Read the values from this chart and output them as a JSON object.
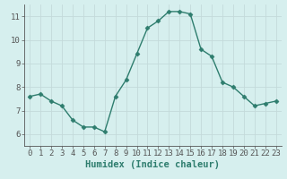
{
  "x": [
    0,
    1,
    2,
    3,
    4,
    5,
    6,
    7,
    8,
    9,
    10,
    11,
    12,
    13,
    14,
    15,
    16,
    17,
    18,
    19,
    20,
    21,
    22,
    23
  ],
  "y": [
    7.6,
    7.7,
    7.4,
    7.2,
    6.6,
    6.3,
    6.3,
    6.1,
    7.6,
    8.3,
    9.4,
    10.5,
    10.8,
    11.2,
    11.2,
    11.1,
    9.6,
    9.3,
    8.2,
    8.0,
    7.6,
    7.2,
    7.3,
    7.4
  ],
  "line_color": "#2e7d6e",
  "marker": "D",
  "marker_size": 2.5,
  "bg_color": "#d6efee",
  "grid_color_major": "#c4dada",
  "grid_color_minor": "#c4dada",
  "xlabel": "Humidex (Indice chaleur)",
  "xlim": [
    -0.5,
    23.5
  ],
  "ylim": [
    5.5,
    11.5
  ],
  "yticks": [
    6,
    7,
    8,
    9,
    10,
    11
  ],
  "xticks": [
    0,
    1,
    2,
    3,
    4,
    5,
    6,
    7,
    8,
    9,
    10,
    11,
    12,
    13,
    14,
    15,
    16,
    17,
    18,
    19,
    20,
    21,
    22,
    23
  ],
  "tick_fontsize": 6.5,
  "xlabel_fontsize": 7.5,
  "line_width": 1.0,
  "spine_color": "#555555"
}
